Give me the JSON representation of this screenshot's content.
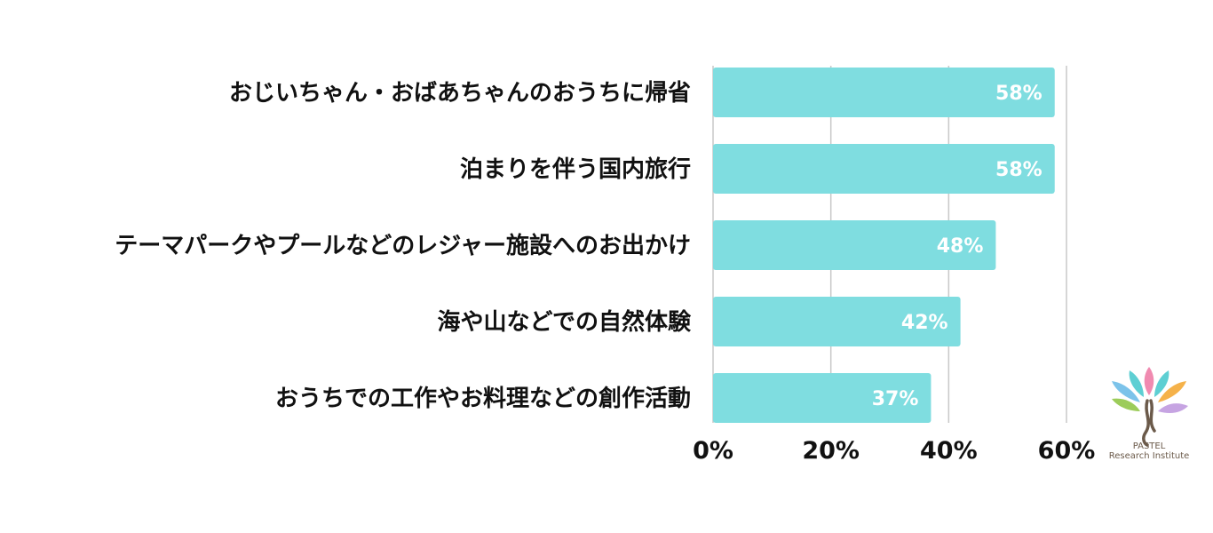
{
  "chart_data": {
    "type": "bar",
    "orientation": "horizontal",
    "categories": [
      "おじいちゃん・おばあちゃんのおうちに帰省",
      "泊まりを伴う国内旅行",
      "テーマパークやプールなどのレジャー施設へのお出かけ",
      "海や山などでの自然体験",
      "おうちでの工作やお料理などの創作活動"
    ],
    "values": [
      58,
      58,
      48,
      42,
      37
    ],
    "value_labels": [
      "58%",
      "58%",
      "48%",
      "42%",
      "37%"
    ],
    "xlim": [
      0,
      60
    ],
    "xticks": [
      0,
      20,
      40,
      60
    ],
    "xtick_labels": [
      "0%",
      "20%",
      "40%",
      "60%"
    ],
    "grid": true,
    "bar_color": "#7fdde0",
    "title": "",
    "xlabel": "",
    "ylabel": ""
  },
  "logo": {
    "name": "flower-tree-logo",
    "line1": "PASTEL",
    "line2": "Research Institute"
  }
}
